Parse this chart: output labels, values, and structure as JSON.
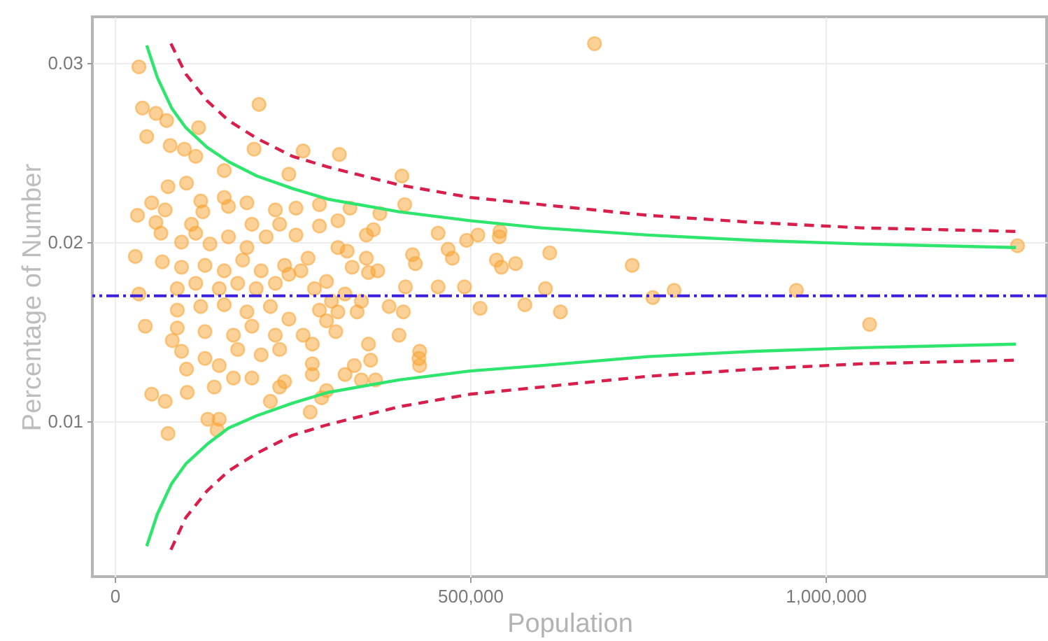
{
  "chart_data": {
    "type": "scatter",
    "xlabel": "Population",
    "ylabel": "Percentage of Number",
    "xlim": [
      -31500,
      1311000
    ],
    "ylim": [
      0.0013,
      0.0326
    ],
    "xticks": [
      0,
      {
        "value": 500000,
        "label": "500,000"
      },
      {
        "value": 1000000,
        "label": "1,000,000"
      }
    ],
    "yticks": [
      0.01,
      0.02,
      0.03
    ],
    "grid": true,
    "series": [
      {
        "marker": "circle",
        "color": "#f7a332",
        "x": [
          39000,
          58000,
          73000,
          45000,
          118000,
          78000,
          98000,
          114000,
          154000,
          75000,
          101000,
          52000,
          71000,
          32000,
          58000,
          65000,
          94000,
          29000,
          67000,
          94000,
          34000,
          43000,
          81000,
          94000,
          101000,
          52000,
          71000,
          102000,
          75000,
          131000,
          147000,
          144000,
          203000,
          196000,
          154000,
          186000,
          226000,
          124000,
          114000,
          134000,
          160000,
          186000,
          213000,
          232000,
          127000,
          154000,
          180000,
          206000,
          239000,
          88000,
          114000,
          147000,
          173000,
          199000,
          226000,
          88000,
          121000,
          154000,
          186000,
          219000,
          88000,
          127000,
          167000,
          193000,
          226000,
          127000,
          147000,
          173000,
          206000,
          232000,
          140000,
          167000,
          193000,
          219000,
          232000,
          121000,
          160000,
          193000,
          108000,
          34000,
          265000,
          316000,
          404000,
          245000,
          408000,
          255000,
          288000,
          331000,
          373000,
          288000,
          314000,
          354000,
          364000,
          255000,
          455000,
          469000,
          495000,
          511000,
          475000,
          419000,
          423000,
          314000,
          327000,
          272000,
          354000,
          334000,
          357000,
          370000,
          262000,
          245000,
          298000,
          281000,
          409000,
          455000,
          492000,
          324000,
          305000,
          347000,
          386000,
          406000,
          514000,
          288000,
          314000,
          341000,
          245000,
          298000,
          265000,
          278000,
          311000,
          400000,
          357000,
          429000,
          429000,
          360000,
          337000,
          278000,
          278000,
          324000,
          347000,
          367000,
          298000,
          291000,
          275000,
          239000,
          675000,
          542000,
          541000,
          612000,
          537000,
          564000,
          544000,
          606000,
          728000,
          757000,
          787000,
          959000,
          1062000,
          1270000,
          577000,
          627000,
          428000
        ],
        "values": [
          0.0275,
          0.0272,
          0.0268,
          0.0259,
          0.0264,
          0.0254,
          0.0252,
          0.0248,
          0.024,
          0.0231,
          0.0233,
          0.0222,
          0.0218,
          0.0215,
          0.0211,
          0.0205,
          0.02,
          0.0192,
          0.0189,
          0.0186,
          0.0171,
          0.0153,
          0.0145,
          0.0139,
          0.0129,
          0.0115,
          0.0111,
          0.0116,
          0.0093,
          0.0101,
          0.0101,
          0.0095,
          0.0277,
          0.0252,
          0.0225,
          0.0222,
          0.0218,
          0.0217,
          0.0205,
          0.0199,
          0.0203,
          0.0197,
          0.0203,
          0.021,
          0.0187,
          0.0184,
          0.019,
          0.0184,
          0.0187,
          0.0174,
          0.0177,
          0.0174,
          0.0177,
          0.0174,
          0.0177,
          0.0162,
          0.0164,
          0.0165,
          0.0161,
          0.0164,
          0.0152,
          0.015,
          0.0148,
          0.0153,
          0.0148,
          0.0135,
          0.0131,
          0.014,
          0.0137,
          0.014,
          0.0119,
          0.0124,
          0.0124,
          0.0111,
          0.0119,
          0.0223,
          0.022,
          0.021,
          0.021,
          0.0298,
          0.0251,
          0.0249,
          0.0237,
          0.0238,
          0.0221,
          0.0219,
          0.0221,
          0.0219,
          0.0216,
          0.0209,
          0.0212,
          0.0204,
          0.0207,
          0.0204,
          0.0205,
          0.0196,
          0.0201,
          0.0204,
          0.0191,
          0.0193,
          0.0188,
          0.0197,
          0.0195,
          0.0191,
          0.0191,
          0.0186,
          0.0183,
          0.0184,
          0.0184,
          0.0182,
          0.0178,
          0.0174,
          0.0175,
          0.0175,
          0.0175,
          0.0171,
          0.0167,
          0.0167,
          0.0164,
          0.0161,
          0.0163,
          0.0162,
          0.0161,
          0.0161,
          0.0157,
          0.0156,
          0.0148,
          0.0143,
          0.015,
          0.0148,
          0.0143,
          0.0139,
          0.0131,
          0.0134,
          0.0131,
          0.0132,
          0.0126,
          0.0126,
          0.0123,
          0.0123,
          0.0117,
          0.0113,
          0.0105,
          0.0122,
          0.0311,
          0.0206,
          0.0203,
          0.0194,
          0.019,
          0.0188,
          0.0186,
          0.0174,
          0.0187,
          0.0169,
          0.0173,
          0.0173,
          0.0154,
          0.0198,
          0.0165,
          0.0161,
          0.0135
        ]
      },
      {
        "type": "line",
        "line_style": "solid",
        "color": "#2ee56e",
        "x": [
          45000,
          60000,
          80000,
          100000,
          130000,
          160000,
          200000,
          250000,
          300000,
          400000,
          500000,
          600000,
          750000,
          900000,
          1050000,
          1268000
        ],
        "values": [
          0.031,
          0.0292,
          0.0275,
          0.0264,
          0.0253,
          0.0245,
          0.0237,
          0.023,
          0.0224,
          0.0217,
          0.0212,
          0.0208,
          0.0204,
          0.0201,
          0.0199,
          0.0197
        ]
      },
      {
        "type": "line",
        "line_style": "solid",
        "color": "#2ee56e",
        "x": [
          45000,
          60000,
          80000,
          100000,
          130000,
          160000,
          200000,
          250000,
          300000,
          400000,
          500000,
          600000,
          750000,
          900000,
          1050000,
          1268000
        ],
        "values": [
          0.003,
          0.0048,
          0.0065,
          0.0076,
          0.0087,
          0.0096,
          0.0103,
          0.011,
          0.0116,
          0.0123,
          0.0128,
          0.0131,
          0.0136,
          0.0139,
          0.0141,
          0.0143
        ]
      },
      {
        "type": "line",
        "line_style": "dashed",
        "color": "#d81e4a",
        "x": [
          79000,
          100000,
          130000,
          160000,
          200000,
          250000,
          300000,
          400000,
          500000,
          600000,
          750000,
          900000,
          1050000,
          1268000
        ],
        "values": [
          0.0311,
          0.0294,
          0.0279,
          0.0268,
          0.0258,
          0.0248,
          0.0242,
          0.0232,
          0.0225,
          0.0221,
          0.0215,
          0.0211,
          0.0208,
          0.0206
        ]
      },
      {
        "type": "line",
        "line_style": "dashed",
        "color": "#d81e4a",
        "x": [
          79000,
          100000,
          130000,
          160000,
          200000,
          250000,
          300000,
          400000,
          500000,
          600000,
          750000,
          900000,
          1050000,
          1268000
        ],
        "values": [
          0.0028,
          0.0046,
          0.0061,
          0.0072,
          0.0082,
          0.0092,
          0.0098,
          0.0108,
          0.0115,
          0.0119,
          0.0125,
          0.0129,
          0.0132,
          0.0134
        ]
      }
    ],
    "ref_lines": [
      {
        "axis": "y",
        "value": 0.017,
        "color": "#3b1fe0",
        "line_style": "dashdot"
      }
    ]
  }
}
